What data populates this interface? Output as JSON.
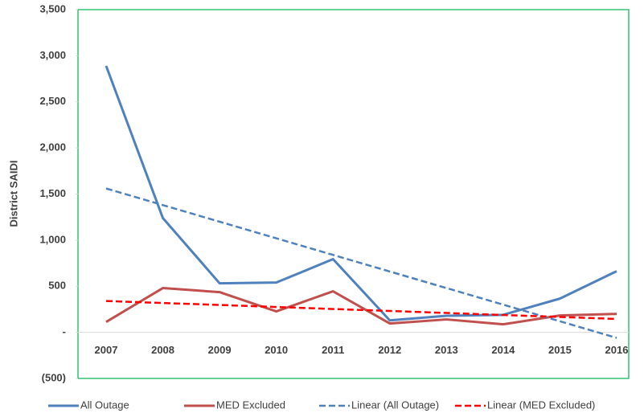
{
  "chart_data": {
    "type": "line",
    "y_label": "District SAIDI",
    "categories": [
      "2007",
      "2008",
      "2009",
      "2010",
      "2011",
      "2012",
      "2013",
      "2014",
      "2015",
      "2016"
    ],
    "series": [
      {
        "name": "All Outage",
        "color": "#4f81bd",
        "style": "solid",
        "values": [
          2890,
          1240,
          532,
          540,
          794,
          130,
          180,
          190,
          366,
          663
        ]
      },
      {
        "name": "MED Excluded",
        "color": "#c0504d",
        "style": "solid",
        "values": [
          113,
          480,
          436,
          227,
          445,
          96,
          140,
          87,
          183,
          200
        ]
      },
      {
        "name": "Linear (All Outage)",
        "color": "#4f81bd",
        "style": "dashed",
        "values": [
          1560,
          1380,
          1200,
          1020,
          840,
          660,
          480,
          300,
          120,
          -60
        ]
      },
      {
        "name": "Linear (MED Excluded)",
        "color": "#ff0000",
        "style": "dashed",
        "values": [
          340,
          318,
          297,
          275,
          253,
          232,
          210,
          188,
          167,
          145
        ]
      }
    ],
    "ylim": [
      -500,
      3500
    ],
    "yticks": [
      {
        "value": -500,
        "label": "(500)"
      },
      {
        "value": 0,
        "label": "-"
      },
      500,
      {
        "value": 1000,
        "label": "1,000"
      },
      {
        "value": 1500,
        "label": "1,500"
      },
      {
        "value": 2000,
        "label": "2,000"
      },
      {
        "value": 2500,
        "label": "2,500"
      },
      {
        "value": 3000,
        "label": "3,000"
      },
      {
        "value": 3500,
        "label": "3,500"
      }
    ],
    "grid": false,
    "legend": "bottom"
  }
}
